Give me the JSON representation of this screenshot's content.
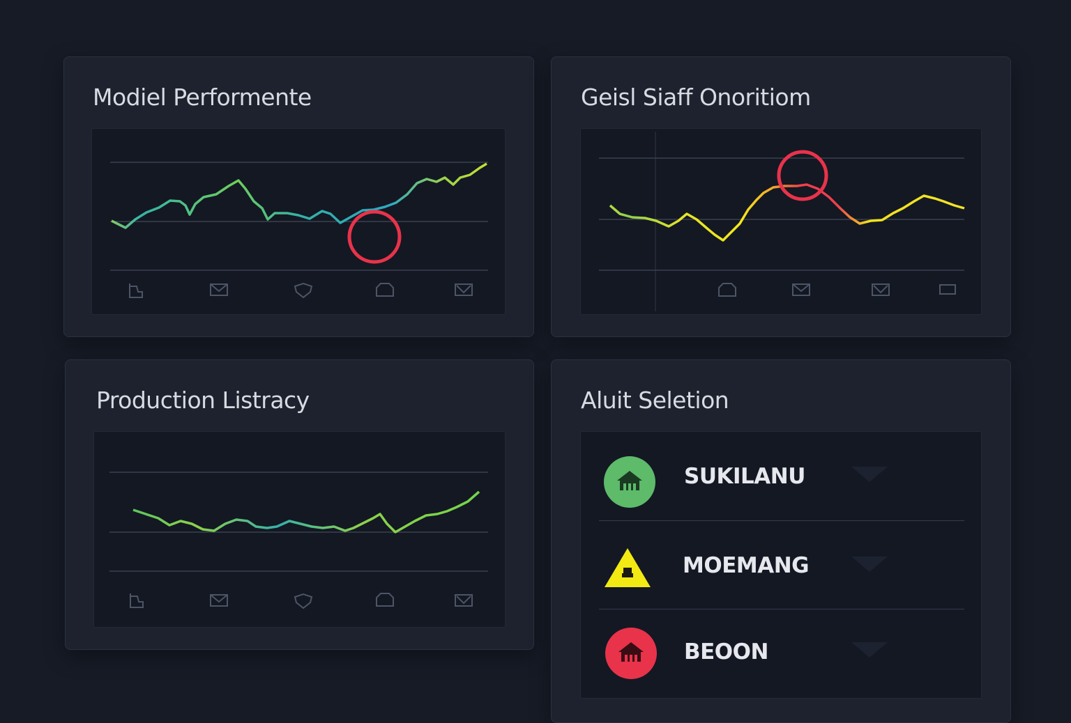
{
  "colors": {
    "background": "#161b26",
    "card": "#1d222e",
    "green": "#5dbb6a",
    "yellow": "#f2ea12",
    "red": "#e8334a",
    "teal": "#3ab0b8"
  },
  "cards": {
    "model_performance": {
      "title": "Modiel Performente"
    },
    "gesl_staff": {
      "title": "Geisl Siaff Onoritiom"
    },
    "production_listracy": {
      "title": "Production Listracy"
    },
    "aluit_seletion": {
      "title": "Aluit Seletion"
    }
  },
  "axis_icons": {
    "model_performance": [
      "flag-icon",
      "mail-icon",
      "shield-icon",
      "home-icon",
      "flag-wave-icon"
    ],
    "gesl_staff": [
      "home-icon",
      "mail-icon",
      "flag-wave-icon",
      "window-icon"
    ],
    "production_listracy": [
      "flag-icon",
      "mail-icon",
      "shield-icon",
      "home-icon",
      "flag-wave-icon"
    ]
  },
  "selection_list": [
    {
      "label": "SUKILANU",
      "status": "green",
      "icon": "house-circle-icon"
    },
    {
      "label": "MOEMANG",
      "status": "yellow",
      "icon": "warning-triangle-icon"
    },
    {
      "label": "BEOON",
      "status": "red",
      "icon": "house-circle-icon"
    }
  ]
}
